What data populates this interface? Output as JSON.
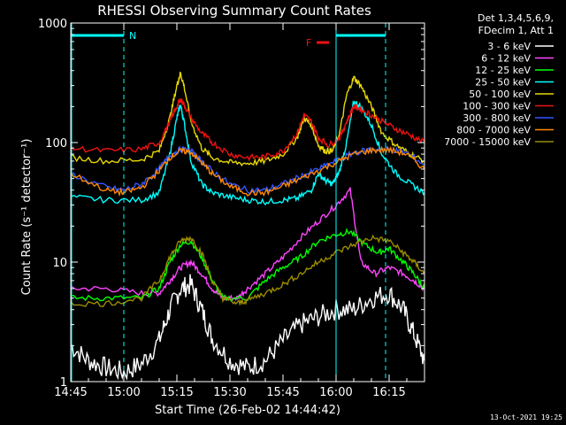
{
  "chart_data": {
    "type": "line",
    "title": "RHESSI Observing Summary Count Rates",
    "xlabel": "Start Time (26-Feb-02 14:44:42)",
    "ylabel": "Count Rate (s⁻¹ detector⁻¹)",
    "ylog": true,
    "ylim": [
      1,
      1000
    ],
    "xlim_minutes": [
      0,
      100
    ],
    "x_ticks": [
      "14:45",
      "15:00",
      "15:15",
      "15:30",
      "15:45",
      "16:00",
      "16:15"
    ],
    "x_tick_minutes": [
      0,
      15,
      30,
      45,
      60,
      75,
      90
    ],
    "y_ticks": [
      "1",
      "10",
      "100",
      "1000"
    ],
    "y_tick_values": [
      1,
      10,
      100,
      1000
    ],
    "legend_header": [
      "Det 1,3,4,5,6,9,",
      "FDecim 1, Att 1"
    ],
    "series": [
      {
        "name": "3 - 6 keV",
        "color": "#ffffff",
        "points": [
          [
            0,
            2
          ],
          [
            5,
            1.5
          ],
          [
            10,
            1.3
          ],
          [
            15,
            1.2
          ],
          [
            20,
            1.4
          ],
          [
            25,
            2.2
          ],
          [
            28,
            4
          ],
          [
            31,
            6
          ],
          [
            34,
            6.5
          ],
          [
            37,
            4
          ],
          [
            40,
            2.3
          ],
          [
            45,
            1.5
          ],
          [
            50,
            1.3
          ],
          [
            55,
            1.5
          ],
          [
            60,
            2.2
          ],
          [
            65,
            3
          ],
          [
            70,
            3.5
          ],
          [
            75,
            4
          ],
          [
            80,
            4
          ],
          [
            85,
            5
          ],
          [
            90,
            5.5
          ],
          [
            94,
            4
          ],
          [
            97,
            2.5
          ],
          [
            100,
            1.5
          ]
        ]
      },
      {
        "name": "6 - 12 keV",
        "color": "#ff44ff",
        "points": [
          [
            0,
            6
          ],
          [
            10,
            6
          ],
          [
            20,
            5.5
          ],
          [
            25,
            5.5
          ],
          [
            28,
            7
          ],
          [
            31,
            9
          ],
          [
            34,
            10
          ],
          [
            37,
            8
          ],
          [
            40,
            6
          ],
          [
            43,
            5
          ],
          [
            47,
            5
          ],
          [
            50,
            6
          ],
          [
            55,
            8
          ],
          [
            60,
            11
          ],
          [
            65,
            16
          ],
          [
            70,
            22
          ],
          [
            75,
            30
          ],
          [
            79,
            40
          ],
          [
            82,
            10
          ],
          [
            86,
            8
          ],
          [
            90,
            9
          ],
          [
            94,
            8
          ],
          [
            97,
            7
          ],
          [
            100,
            6
          ]
        ]
      },
      {
        "name": "12 - 25 keV",
        "color": "#00ff00",
        "points": [
          [
            0,
            5
          ],
          [
            10,
            5
          ],
          [
            20,
            5
          ],
          [
            25,
            6
          ],
          [
            28,
            10
          ],
          [
            31,
            14
          ],
          [
            34,
            15
          ],
          [
            37,
            11
          ],
          [
            40,
            7
          ],
          [
            43,
            5
          ],
          [
            50,
            5
          ],
          [
            55,
            7
          ],
          [
            60,
            9
          ],
          [
            65,
            11
          ],
          [
            70,
            15
          ],
          [
            75,
            17
          ],
          [
            79,
            18
          ],
          [
            83,
            14
          ],
          [
            87,
            12
          ],
          [
            90,
            13
          ],
          [
            94,
            10
          ],
          [
            97,
            8
          ],
          [
            100,
            6
          ]
        ]
      },
      {
        "name": "25 - 50 keV",
        "color": "#00ffff",
        "points": [
          [
            0,
            35
          ],
          [
            10,
            33
          ],
          [
            20,
            33
          ],
          [
            25,
            38
          ],
          [
            28,
            80
          ],
          [
            30,
            160
          ],
          [
            31,
            210
          ],
          [
            32,
            150
          ],
          [
            34,
            70
          ],
          [
            37,
            45
          ],
          [
            40,
            38
          ],
          [
            45,
            35
          ],
          [
            50,
            33
          ],
          [
            55,
            32
          ],
          [
            60,
            33
          ],
          [
            64,
            34
          ],
          [
            68,
            40
          ],
          [
            70,
            55
          ],
          [
            72,
            48
          ],
          [
            74,
            45
          ],
          [
            76,
            58
          ],
          [
            78,
            100
          ],
          [
            80,
            220
          ],
          [
            82,
            200
          ],
          [
            85,
            140
          ],
          [
            88,
            80
          ],
          [
            92,
            55
          ],
          [
            96,
            45
          ],
          [
            100,
            38
          ]
        ]
      },
      {
        "name": "50 - 100 keV",
        "color": "#e8d800",
        "points": [
          [
            0,
            75
          ],
          [
            10,
            70
          ],
          [
            20,
            72
          ],
          [
            25,
            85
          ],
          [
            28,
            160
          ],
          [
            30,
            300
          ],
          [
            31,
            380
          ],
          [
            32,
            300
          ],
          [
            34,
            150
          ],
          [
            37,
            90
          ],
          [
            40,
            75
          ],
          [
            45,
            68
          ],
          [
            50,
            67
          ],
          [
            55,
            70
          ],
          [
            60,
            80
          ],
          [
            64,
            110
          ],
          [
            66,
            160
          ],
          [
            68,
            140
          ],
          [
            70,
            95
          ],
          [
            72,
            85
          ],
          [
            74,
            85
          ],
          [
            76,
            120
          ],
          [
            78,
            250
          ],
          [
            80,
            350
          ],
          [
            82,
            300
          ],
          [
            85,
            200
          ],
          [
            88,
            120
          ],
          [
            92,
            95
          ],
          [
            96,
            80
          ],
          [
            100,
            70
          ]
        ]
      },
      {
        "name": "100 - 300 keV",
        "color": "#ee1111",
        "points": [
          [
            0,
            90
          ],
          [
            10,
            85
          ],
          [
            20,
            88
          ],
          [
            25,
            100
          ],
          [
            28,
            150
          ],
          [
            30,
            200
          ],
          [
            31,
            230
          ],
          [
            32,
            210
          ],
          [
            34,
            160
          ],
          [
            37,
            120
          ],
          [
            40,
            100
          ],
          [
            45,
            80
          ],
          [
            50,
            75
          ],
          [
            55,
            76
          ],
          [
            60,
            85
          ],
          [
            64,
            120
          ],
          [
            66,
            170
          ],
          [
            68,
            150
          ],
          [
            70,
            110
          ],
          [
            73,
            95
          ],
          [
            76,
            110
          ],
          [
            78,
            150
          ],
          [
            80,
            200
          ],
          [
            82,
            190
          ],
          [
            85,
            170
          ],
          [
            88,
            150
          ],
          [
            92,
            130
          ],
          [
            96,
            115
          ],
          [
            100,
            100
          ]
        ]
      },
      {
        "name": "300 - 800 keV",
        "color": "#3355ff",
        "points": [
          [
            0,
            55
          ],
          [
            10,
            42
          ],
          [
            15,
            40
          ],
          [
            20,
            45
          ],
          [
            25,
            60
          ],
          [
            28,
            78
          ],
          [
            31,
            88
          ],
          [
            34,
            85
          ],
          [
            37,
            70
          ],
          [
            40,
            58
          ],
          [
            45,
            45
          ],
          [
            50,
            40
          ],
          [
            55,
            40
          ],
          [
            60,
            45
          ],
          [
            65,
            52
          ],
          [
            70,
            60
          ],
          [
            75,
            70
          ],
          [
            80,
            82
          ],
          [
            85,
            88
          ],
          [
            90,
            88
          ],
          [
            95,
            82
          ],
          [
            100,
            65
          ]
        ]
      },
      {
        "name": "800 - 7000 keV",
        "color": "#ff8800",
        "points": [
          [
            0,
            55
          ],
          [
            10,
            40
          ],
          [
            15,
            38
          ],
          [
            20,
            42
          ],
          [
            25,
            58
          ],
          [
            28,
            75
          ],
          [
            31,
            85
          ],
          [
            34,
            83
          ],
          [
            37,
            68
          ],
          [
            40,
            55
          ],
          [
            45,
            43
          ],
          [
            50,
            38
          ],
          [
            55,
            38
          ],
          [
            60,
            43
          ],
          [
            65,
            50
          ],
          [
            70,
            58
          ],
          [
            75,
            68
          ],
          [
            80,
            80
          ],
          [
            85,
            86
          ],
          [
            90,
            87
          ],
          [
            95,
            80
          ],
          [
            100,
            60
          ]
        ]
      },
      {
        "name": "7000 - 15000 keV",
        "color": "#9a8c00",
        "points": [
          [
            0,
            4.5
          ],
          [
            10,
            4.5
          ],
          [
            20,
            5
          ],
          [
            25,
            7
          ],
          [
            28,
            11
          ],
          [
            31,
            15
          ],
          [
            34,
            16
          ],
          [
            37,
            12
          ],
          [
            40,
            7
          ],
          [
            43,
            5
          ],
          [
            47,
            4.5
          ],
          [
            50,
            4.8
          ],
          [
            55,
            5.5
          ],
          [
            60,
            6.5
          ],
          [
            65,
            8
          ],
          [
            70,
            10
          ],
          [
            75,
            12
          ],
          [
            80,
            14
          ],
          [
            85,
            16
          ],
          [
            90,
            15
          ],
          [
            94,
            12
          ],
          [
            97,
            10
          ],
          [
            100,
            8
          ]
        ]
      }
    ],
    "annotations": {
      "N_marker": "N",
      "F_marker": "F",
      "F_color": "#ee1111",
      "cyan_color": "#00ffff",
      "night_minutes": [
        0,
        15
      ],
      "night2_minutes": [
        75,
        89
      ],
      "flare_minutes": [
        69.5,
        73
      ]
    }
  },
  "footer": {
    "timestamp": "13-Oct-2021 19:25"
  }
}
